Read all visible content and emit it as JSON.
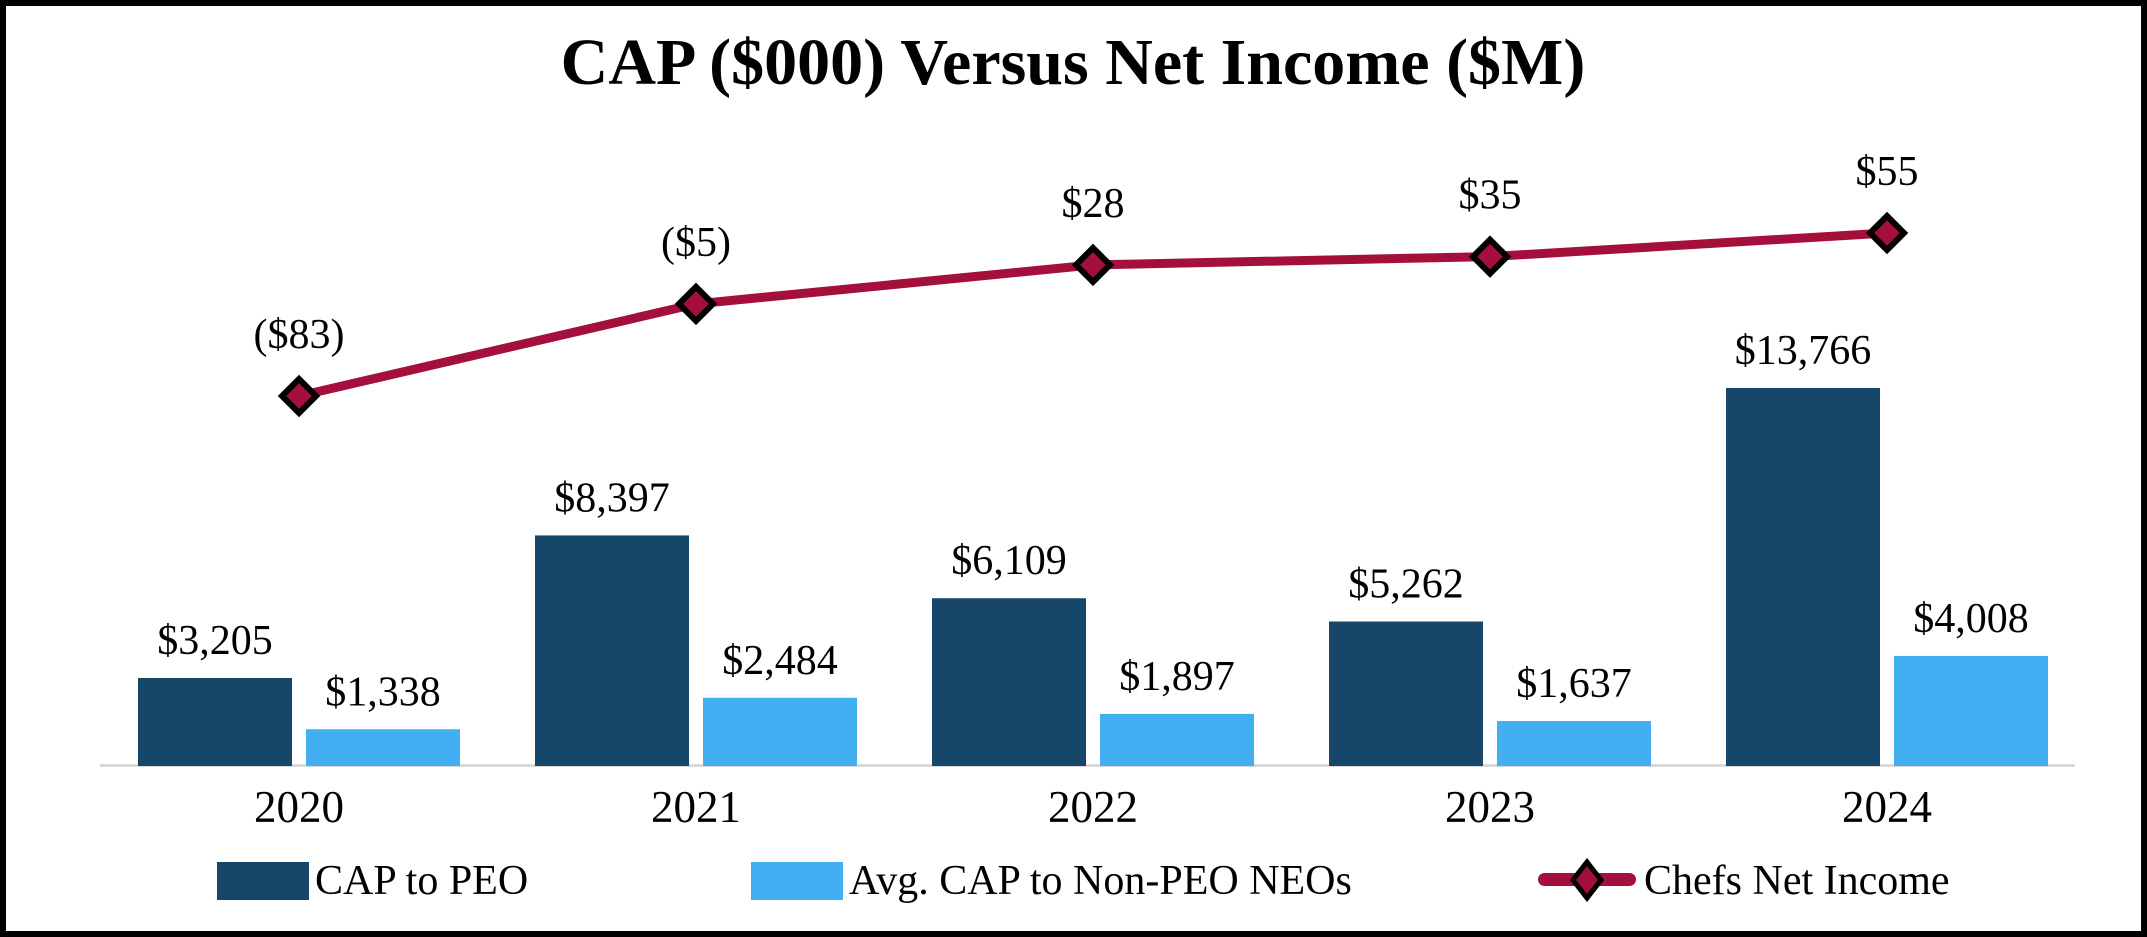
{
  "title": "CAP ($000) Versus Net Income ($M)",
  "legend": {
    "cap_to_peo_label": "CAP to PEO",
    "avg_cap_label": "Avg. CAP to Non-PEO NEOs",
    "net_income_label": "Chefs Net Income"
  },
  "colors": {
    "cap_to_peo": "#17466B",
    "avg_cap": "#41AFF1",
    "net_income": "#A50F3C",
    "axis": "#D9D9D9",
    "border": "#000000"
  },
  "chart_data": {
    "type": "bar",
    "subtype": "grouped-bars-with-line-overlay",
    "title": "CAP ($000) Versus Net Income ($M)",
    "categories": [
      "2020",
      "2021",
      "2022",
      "2023",
      "2024"
    ],
    "series": [
      {
        "name": "CAP to PEO",
        "type": "bar",
        "unit": "$000",
        "color": "#17466B",
        "values": [
          3205,
          8397,
          6109,
          5262,
          13766
        ],
        "labels": [
          "$3,205",
          "$8,397",
          "$6,109",
          "$5,262",
          "$13,766"
        ]
      },
      {
        "name": "Avg. CAP to Non-PEO NEOs",
        "type": "bar",
        "unit": "$000",
        "color": "#41AFF1",
        "values": [
          1338,
          2484,
          1897,
          1637,
          4008
        ],
        "labels": [
          "$1,338",
          "$2,484",
          "$1,897",
          "$1,637",
          "$4,008"
        ]
      },
      {
        "name": "Chefs Net Income",
        "type": "line",
        "unit": "$M",
        "color": "#A50F3C",
        "marker": "diamond",
        "values": [
          -83,
          -5,
          28,
          35,
          55
        ],
        "labels": [
          "($83)",
          "($5)",
          "$28",
          "$35",
          "$55"
        ]
      }
    ],
    "xlabel": "",
    "ylabel": "",
    "y_axis_visible": false,
    "gridlines": false,
    "data_labels": true,
    "legend_position": "bottom"
  }
}
